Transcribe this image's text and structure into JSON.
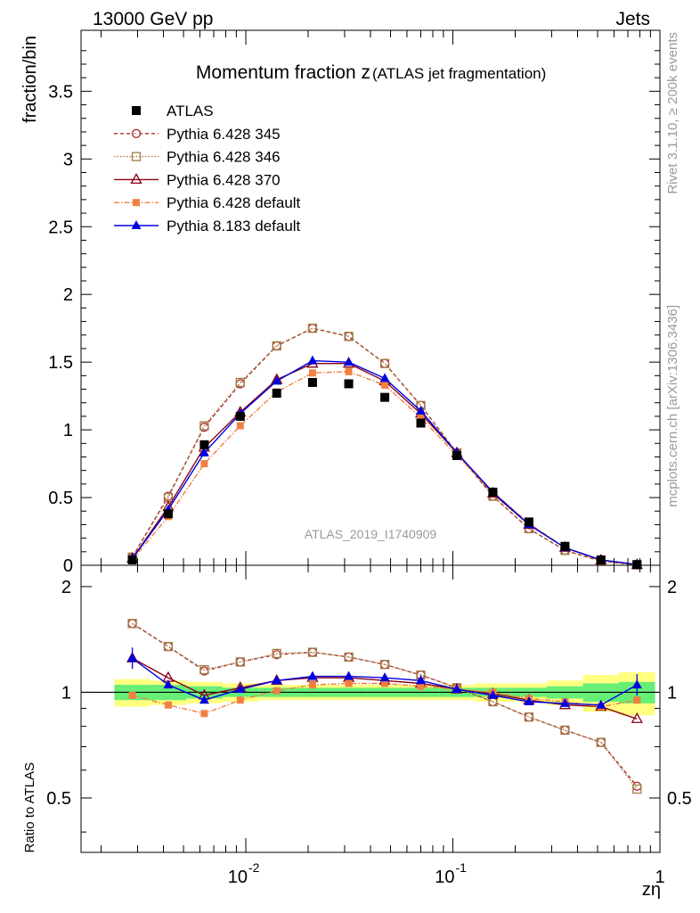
{
  "header": {
    "left": "13000 GeV pp",
    "right": "Jets"
  },
  "side_text": {
    "rivet": "Rivet 3.1.10, ≥ 200k events",
    "url": "mcplots.cern.ch [arXiv:1306.3436]"
  },
  "chart_data": {
    "type": "line",
    "title_main": "Momentum fraction z",
    "title_sub": "(ATLAS jet fragmentation)",
    "watermark": "ATLAS_2019_I1740909",
    "xlabel": "zη",
    "ylabel_top": "fraction/bin",
    "ylabel_bottom": "Ratio to ATLAS",
    "xscale": "log",
    "xlim": [
      0.0016,
      1.0
    ],
    "ylim_top": [
      0,
      3.95
    ],
    "ylim_bottom": [
      0.35,
      2.3
    ],
    "yticks_top": [
      "0",
      "0.5",
      "1",
      "1.5",
      "2",
      "2.5",
      "3",
      "3.5"
    ],
    "yticks_bottom": [
      "0.5",
      "1",
      "2"
    ],
    "xtick_labels": [
      "10",
      "-2",
      "10",
      "-1",
      "1"
    ],
    "legend_position": "top-left",
    "x": [
      0.00283,
      0.00422,
      0.0063,
      0.0094,
      0.0141,
      0.021,
      0.0314,
      0.0469,
      0.07,
      0.1045,
      0.1561,
      0.233,
      0.348,
      0.519,
      0.775
    ],
    "data": {
      "name": "ATLAS",
      "values": [
        0.04,
        0.38,
        0.89,
        1.1,
        1.27,
        1.35,
        1.34,
        1.24,
        1.05,
        0.81,
        0.54,
        0.32,
        0.14,
        0.04,
        0.005
      ],
      "ratio_band_stat": [
        0.05,
        0.05,
        0.04,
        0.03,
        0.03,
        0.03,
        0.03,
        0.03,
        0.03,
        0.03,
        0.03,
        0.03,
        0.04,
        0.06,
        0.07
      ],
      "ratio_band_total": [
        0.09,
        0.08,
        0.07,
        0.06,
        0.05,
        0.05,
        0.05,
        0.05,
        0.05,
        0.05,
        0.06,
        0.06,
        0.08,
        0.12,
        0.14
      ]
    },
    "series": [
      {
        "name": "Pythia 6.428 345",
        "color": "#b22c2c",
        "dash": "4,3",
        "marker": "open-circle",
        "values": [
          0.06,
          0.51,
          1.02,
          1.34,
          1.62,
          1.75,
          1.69,
          1.49,
          1.18,
          0.83,
          0.51,
          0.27,
          0.11,
          0.03,
          0.003
        ],
        "ratio": [
          1.57,
          1.35,
          1.15,
          1.22,
          1.28,
          1.3,
          1.26,
          1.2,
          1.12,
          1.03,
          0.94,
          0.85,
          0.78,
          0.72,
          0.54
        ]
      },
      {
        "name": "Pythia 6.428 346",
        "color": "#a07c45",
        "dash": "1.5,2",
        "marker": "open-square",
        "values": [
          0.06,
          0.5,
          1.03,
          1.35,
          1.62,
          1.75,
          1.69,
          1.49,
          1.18,
          0.83,
          0.51,
          0.27,
          0.11,
          0.03,
          0.003
        ],
        "ratio": [
          1.57,
          1.35,
          1.16,
          1.22,
          1.29,
          1.3,
          1.26,
          1.2,
          1.12,
          1.03,
          0.94,
          0.85,
          0.78,
          0.72,
          0.53
        ]
      },
      {
        "name": "Pythia 6.428 370",
        "color": "#8b0016",
        "dash": "",
        "marker": "open-triangle",
        "values": [
          0.05,
          0.43,
          0.87,
          1.13,
          1.37,
          1.49,
          1.49,
          1.36,
          1.12,
          0.83,
          0.53,
          0.3,
          0.13,
          0.037,
          0.004
        ],
        "ratio": [
          1.25,
          1.1,
          0.98,
          1.03,
          1.08,
          1.1,
          1.1,
          1.08,
          1.06,
          1.02,
          0.99,
          0.95,
          0.92,
          0.91,
          0.84
        ]
      },
      {
        "name": "Pythia 6.428 default",
        "color": "#f08040",
        "dash": "6,2,1.5,2",
        "marker": "filled-square",
        "values": [
          0.04,
          0.36,
          0.75,
          1.03,
          1.28,
          1.42,
          1.43,
          1.33,
          1.09,
          0.81,
          0.54,
          0.31,
          0.13,
          0.035,
          0.005
        ],
        "ratio": [
          0.98,
          0.92,
          0.87,
          0.95,
          1.01,
          1.05,
          1.06,
          1.06,
          1.04,
          1.02,
          1.0,
          0.96,
          0.94,
          0.91,
          0.95
        ]
      },
      {
        "name": "Pythia 8.183 default",
        "color": "#0000e0",
        "dash": "",
        "marker": "filled-triangle",
        "values": [
          0.05,
          0.41,
          0.83,
          1.12,
          1.36,
          1.51,
          1.5,
          1.38,
          1.14,
          0.83,
          0.54,
          0.3,
          0.13,
          0.04,
          0.006
        ],
        "ratio": [
          1.25,
          1.05,
          0.95,
          1.02,
          1.08,
          1.11,
          1.11,
          1.1,
          1.08,
          1.02,
          0.98,
          0.94,
          0.93,
          0.92,
          1.05
        ]
      }
    ]
  }
}
